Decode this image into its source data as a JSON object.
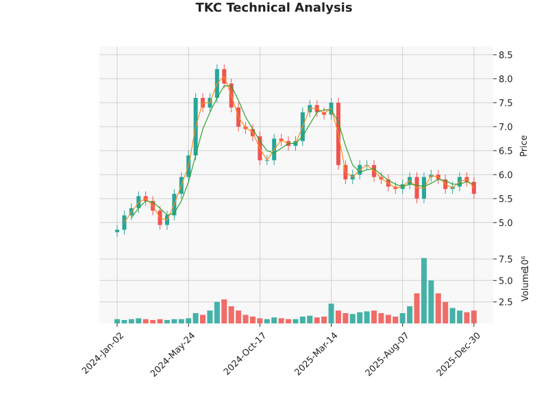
{
  "chart_data": {
    "type": "candlestick",
    "title": "TKC Technical Analysis",
    "x": [
      0,
      10,
      20,
      30,
      40,
      50,
      60,
      70,
      80,
      90,
      100,
      110,
      120,
      130,
      140,
      150,
      160,
      170,
      180,
      190,
      200,
      210,
      220,
      230,
      240,
      250,
      260,
      270,
      280,
      290,
      300,
      310,
      320,
      330,
      340,
      350,
      360,
      370,
      380,
      390,
      400,
      410,
      420,
      430,
      440,
      450,
      460,
      470,
      480,
      490,
      500
    ],
    "open": [
      4.8,
      4.85,
      5.15,
      5.3,
      5.55,
      5.45,
      5.25,
      4.95,
      5.15,
      5.6,
      5.95,
      6.4,
      7.6,
      7.4,
      7.6,
      8.2,
      7.9,
      7.4,
      7.0,
      6.95,
      6.8,
      6.3,
      6.3,
      6.75,
      6.7,
      6.6,
      6.7,
      7.3,
      7.45,
      7.3,
      7.25,
      7.5,
      6.2,
      5.9,
      6.0,
      6.2,
      6.2,
      5.95,
      5.9,
      5.75,
      5.7,
      5.8,
      5.95,
      5.5,
      5.95,
      6.0,
      5.9,
      5.7,
      5.75,
      5.95,
      5.85
    ],
    "high": [
      4.95,
      5.25,
      5.4,
      5.65,
      5.65,
      5.55,
      5.35,
      5.25,
      5.7,
      6.05,
      6.5,
      7.7,
      7.7,
      7.7,
      8.3,
      8.3,
      8.0,
      7.5,
      7.1,
      7.05,
      6.9,
      6.4,
      6.85,
      6.85,
      6.8,
      6.8,
      7.4,
      7.55,
      7.55,
      7.4,
      7.6,
      7.6,
      6.3,
      6.1,
      6.3,
      6.3,
      6.3,
      6.05,
      6.0,
      5.85,
      5.9,
      6.05,
      6.05,
      6.05,
      6.1,
      6.1,
      6.0,
      5.85,
      6.05,
      6.05,
      5.95
    ],
    "low": [
      4.7,
      4.75,
      5.05,
      5.2,
      5.35,
      5.15,
      4.85,
      4.85,
      5.05,
      5.5,
      5.85,
      6.3,
      7.3,
      7.3,
      7.5,
      7.8,
      7.3,
      6.9,
      6.85,
      6.7,
      6.2,
      6.2,
      6.2,
      6.6,
      6.5,
      6.5,
      6.6,
      7.2,
      7.2,
      7.15,
      7.15,
      6.1,
      5.8,
      5.8,
      5.9,
      6.1,
      5.85,
      5.8,
      5.65,
      5.6,
      5.6,
      5.7,
      5.4,
      5.4,
      5.85,
      5.8,
      5.6,
      5.6,
      5.65,
      5.75,
      5.5
    ],
    "close": [
      4.85,
      5.15,
      5.3,
      5.55,
      5.45,
      5.25,
      4.95,
      5.15,
      5.6,
      5.95,
      6.4,
      7.6,
      7.4,
      7.6,
      8.2,
      7.9,
      7.4,
      7.0,
      6.95,
      6.8,
      6.3,
      6.3,
      6.75,
      6.7,
      6.6,
      6.7,
      7.3,
      7.45,
      7.3,
      7.25,
      7.5,
      6.2,
      5.9,
      6.0,
      6.2,
      6.2,
      5.95,
      5.9,
      5.75,
      5.7,
      5.8,
      5.95,
      5.5,
      5.95,
      6.0,
      5.9,
      5.7,
      5.75,
      5.95,
      5.85,
      5.6
    ],
    "up_color": "#26a69a",
    "down_color": "#ef5350",
    "moving_averages": [
      {
        "color": "#ff8c1a",
        "values": [
          null,
          5.0,
          5.22,
          5.42,
          5.5,
          5.35,
          5.1,
          5.05,
          5.38,
          5.78,
          6.18,
          7.0,
          7.5,
          7.5,
          7.9,
          8.05,
          7.65,
          7.2,
          6.98,
          6.88,
          6.55,
          6.3,
          6.52,
          6.72,
          6.65,
          6.65,
          7.0,
          7.38,
          7.38,
          7.28,
          7.38,
          6.85,
          6.05,
          5.95,
          6.1,
          6.2,
          6.08,
          5.92,
          5.82,
          5.72,
          5.75,
          5.88,
          5.72,
          5.72,
          5.98,
          5.95,
          5.8,
          5.72,
          5.85,
          5.9,
          5.72
        ]
      },
      {
        "color": "#2ca02c",
        "values": [
          null,
          null,
          5.1,
          5.3,
          5.45,
          5.43,
          5.3,
          5.15,
          5.2,
          5.45,
          5.85,
          6.4,
          6.95,
          7.3,
          7.6,
          7.85,
          7.85,
          7.55,
          7.2,
          6.95,
          6.7,
          6.5,
          6.45,
          6.55,
          6.65,
          6.65,
          6.8,
          7.05,
          7.3,
          7.35,
          7.35,
          7.1,
          6.6,
          6.2,
          6.05,
          6.1,
          6.12,
          6.0,
          5.88,
          5.8,
          5.75,
          5.8,
          5.78,
          5.75,
          5.82,
          5.9,
          5.88,
          5.8,
          5.8,
          5.85,
          5.8
        ]
      }
    ],
    "xlim": [
      -25,
      527
    ],
    "xticks": [
      {
        "value": 0,
        "label": "2024-Jan-02"
      },
      {
        "value": 100,
        "label": "2024-May-24"
      },
      {
        "value": 200,
        "label": "2024-Oct-17"
      },
      {
        "value": 300,
        "label": "2025-Mar-14"
      },
      {
        "value": 400,
        "label": "2025-Aug-07"
      },
      {
        "value": 500,
        "label": "2025-Dec-30"
      }
    ],
    "ylim": [
      4.54,
      8.67
    ],
    "yticks": [
      {
        "value": 5,
        "label": "5.0"
      },
      5.5,
      {
        "value": 6,
        "label": "6.0"
      },
      6.5,
      {
        "value": 7,
        "label": "7.0"
      },
      7.5,
      {
        "value": 8,
        "label": "8.0"
      },
      8.5
    ],
    "y_label": "Price",
    "grid": true,
    "volume": {
      "values": [
        0.5,
        0.4,
        0.5,
        0.6,
        0.5,
        0.4,
        0.5,
        0.4,
        0.5,
        0.5,
        0.6,
        1.2,
        1.0,
        1.5,
        2.5,
        2.8,
        2.0,
        1.5,
        1.0,
        0.8,
        0.6,
        0.5,
        0.7,
        0.6,
        0.5,
        0.5,
        0.8,
        0.9,
        0.7,
        0.8,
        2.3,
        1.5,
        1.2,
        1.1,
        1.3,
        1.4,
        1.5,
        1.2,
        1.0,
        0.8,
        1.2,
        2.0,
        3.5,
        7.6,
        5.0,
        3.5,
        2.5,
        1.8,
        1.5,
        1.3,
        1.5
      ],
      "ylim": [
        0,
        9.17
      ],
      "yticks": [
        2.5,
        {
          "value": 5,
          "label": "5.0"
        },
        7.5
      ],
      "label": "Volume",
      "scale_label": "10⁶"
    }
  }
}
